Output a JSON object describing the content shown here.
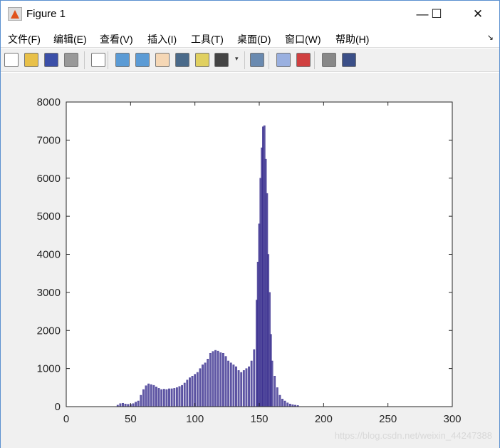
{
  "window": {
    "title": "Figure 1",
    "minimize": "—",
    "maximize": "☐",
    "close": "✕"
  },
  "menu": [
    "文件(F)",
    "编辑(E)",
    "查看(V)",
    "插入(I)",
    "工具(T)",
    "桌面(D)",
    "窗口(W)",
    "帮助(H)"
  ],
  "toolbar": [
    "new-icon",
    "open-icon",
    "save-icon",
    "print-icon",
    "pointer-icon",
    "zoom-in-icon",
    "zoom-out-icon",
    "pan-icon",
    "rotate-icon",
    "data-cursor-icon",
    "brush-icon",
    "link-icon",
    "colorbar-icon",
    "legend-icon",
    "hide-plot-tools-icon",
    "show-plot-tools-icon"
  ],
  "watermark": "https://blog.csdn.net/weixin_44247388",
  "chart_data": {
    "type": "bar",
    "title": "",
    "xlabel": "",
    "ylabel": "",
    "xlim": [
      0,
      300
    ],
    "ylim": [
      0,
      8000
    ],
    "xticks": [
      "0",
      "50",
      "100",
      "150",
      "200",
      "250",
      "300"
    ],
    "yticks": [
      "0",
      "1000",
      "2000",
      "3000",
      "4000",
      "5000",
      "6000",
      "7000",
      "8000"
    ],
    "bar_color": "#3a2f8f",
    "x": [
      40,
      42,
      44,
      46,
      48,
      50,
      52,
      54,
      56,
      58,
      60,
      62,
      64,
      66,
      68,
      70,
      72,
      74,
      76,
      78,
      80,
      82,
      84,
      86,
      88,
      90,
      92,
      94,
      96,
      98,
      100,
      102,
      104,
      106,
      108,
      110,
      112,
      114,
      116,
      118,
      120,
      122,
      124,
      126,
      128,
      130,
      132,
      134,
      136,
      138,
      140,
      142,
      144,
      146,
      148,
      149,
      150,
      151,
      152,
      153,
      154,
      155,
      156,
      157,
      158,
      159,
      160,
      162,
      164,
      166,
      168,
      170,
      172,
      174,
      176,
      178,
      180
    ],
    "values": [
      40,
      80,
      90,
      70,
      60,
      60,
      80,
      120,
      150,
      300,
      450,
      550,
      600,
      580,
      560,
      520,
      480,
      450,
      460,
      450,
      470,
      470,
      480,
      500,
      530,
      560,
      620,
      700,
      760,
      800,
      850,
      900,
      1000,
      1100,
      1150,
      1250,
      1400,
      1450,
      1480,
      1460,
      1420,
      1400,
      1320,
      1200,
      1150,
      1100,
      1050,
      950,
      900,
      950,
      1000,
      1050,
      1200,
      1500,
      2800,
      3800,
      4800,
      6000,
      6800,
      7350,
      7380,
      6500,
      5600,
      4000,
      3000,
      1900,
      1200,
      800,
      500,
      300,
      200,
      150,
      100,
      70,
      50,
      40,
      30
    ]
  }
}
